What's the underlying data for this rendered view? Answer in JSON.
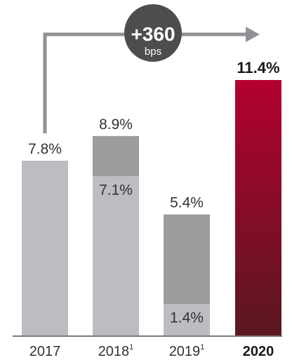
{
  "chart_data": {
    "type": "bar",
    "categories": [
      "2017",
      "2018",
      "2019",
      "2020"
    ],
    "category_superscripts": [
      "",
      "1",
      "1",
      ""
    ],
    "highlight_category": "2020",
    "bars": [
      {
        "total": 7.8,
        "base": 7.8,
        "total_label": "7.8%",
        "base_label": ""
      },
      {
        "total": 8.9,
        "base": 7.1,
        "total_label": "8.9%",
        "base_label": "7.1%"
      },
      {
        "total": 5.4,
        "base": 1.4,
        "total_label": "5.4%",
        "base_label": "1.4%"
      },
      {
        "total": 11.4,
        "base": 11.4,
        "total_label": "11.4%",
        "base_label": ""
      }
    ],
    "ylim": [
      0,
      11.4
    ],
    "grid": false,
    "annotation": {
      "value": "+360",
      "unit": "bps",
      "from": "2017",
      "to": "2020"
    },
    "colors": {
      "base": "#bcbdc0",
      "increment": "#9b9c9e",
      "highlight_top": "#b3002f",
      "highlight_bottom": "#5a1820",
      "label": "#333333",
      "arrow": "#909194",
      "badge": "#4d4d4f",
      "badge_text": "#ffffff"
    }
  }
}
